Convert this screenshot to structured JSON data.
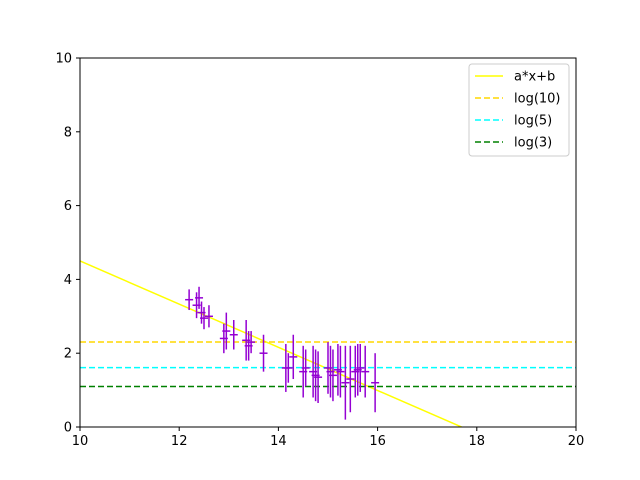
{
  "chart_data": {
    "type": "scatter",
    "title": "",
    "xlabel": "",
    "ylabel": "",
    "xlim": [
      10,
      20
    ],
    "ylim": [
      0,
      10
    ],
    "xticks": [
      "10",
      "12",
      "14",
      "16",
      "18",
      "20"
    ],
    "yticks": [
      "0",
      "2",
      "4",
      "6",
      "8",
      "10"
    ],
    "grid": false,
    "legend_position": "top-right",
    "errorbar_series": {
      "color": "#9400d3",
      "points": [
        {
          "x": 12.2,
          "y": 3.45,
          "yerr": 0.28
        },
        {
          "x": 12.35,
          "y": 3.3,
          "yerr": 0.35
        },
        {
          "x": 12.4,
          "y": 3.5,
          "yerr": 0.3
        },
        {
          "x": 12.45,
          "y": 3.1,
          "yerr": 0.3
        },
        {
          "x": 12.5,
          "y": 2.95,
          "yerr": 0.3
        },
        {
          "x": 12.6,
          "y": 3.0,
          "yerr": 0.3
        },
        {
          "x": 12.9,
          "y": 2.4,
          "yerr": 0.4
        },
        {
          "x": 12.95,
          "y": 2.6,
          "yerr": 0.5
        },
        {
          "x": 13.1,
          "y": 2.5,
          "yerr": 0.4
        },
        {
          "x": 13.35,
          "y": 2.35,
          "yerr": 0.55
        },
        {
          "x": 13.4,
          "y": 2.2,
          "yerr": 0.4
        },
        {
          "x": 13.45,
          "y": 2.3,
          "yerr": 0.3
        },
        {
          "x": 13.7,
          "y": 2.0,
          "yerr": 0.5
        },
        {
          "x": 14.15,
          "y": 1.6,
          "yerr": 0.65
        },
        {
          "x": 14.2,
          "y": 1.6,
          "yerr": 0.4
        },
        {
          "x": 14.3,
          "y": 1.9,
          "yerr": 0.6
        },
        {
          "x": 14.5,
          "y": 1.5,
          "yerr": 0.7
        },
        {
          "x": 14.55,
          "y": 1.6,
          "yerr": 0.5
        },
        {
          "x": 14.7,
          "y": 1.5,
          "yerr": 0.7
        },
        {
          "x": 14.75,
          "y": 1.4,
          "yerr": 0.7
        },
        {
          "x": 14.8,
          "y": 1.35,
          "yerr": 0.7
        },
        {
          "x": 15.0,
          "y": 1.6,
          "yerr": 0.7
        },
        {
          "x": 15.05,
          "y": 1.5,
          "yerr": 0.7
        },
        {
          "x": 15.1,
          "y": 1.4,
          "yerr": 0.7
        },
        {
          "x": 15.2,
          "y": 1.55,
          "yerr": 0.7
        },
        {
          "x": 15.25,
          "y": 1.5,
          "yerr": 0.7
        },
        {
          "x": 15.35,
          "y": 1.2,
          "yerr": 1.0
        },
        {
          "x": 15.45,
          "y": 1.3,
          "yerr": 0.9
        },
        {
          "x": 15.55,
          "y": 1.5,
          "yerr": 0.7
        },
        {
          "x": 15.6,
          "y": 1.55,
          "yerr": 0.7
        },
        {
          "x": 15.65,
          "y": 1.6,
          "yerr": 0.65
        },
        {
          "x": 15.75,
          "y": 1.5,
          "yerr": 0.7
        },
        {
          "x": 15.95,
          "y": 1.2,
          "yerr": 0.8
        }
      ]
    },
    "series": [
      {
        "name": "a*x+b",
        "kind": "line",
        "color": "#ffff00",
        "style": "solid",
        "slope": -0.585,
        "intercept": 10.35
      },
      {
        "name": "log(10)",
        "kind": "hline",
        "color": "#ffd700",
        "style": "dashed",
        "y": 2.302
      },
      {
        "name": "log(5)",
        "kind": "hline",
        "color": "#00ffff",
        "style": "dashed",
        "y": 1.609
      },
      {
        "name": "log(3)",
        "kind": "hline",
        "color": "#008000",
        "style": "dashed",
        "y": 1.099
      }
    ]
  }
}
